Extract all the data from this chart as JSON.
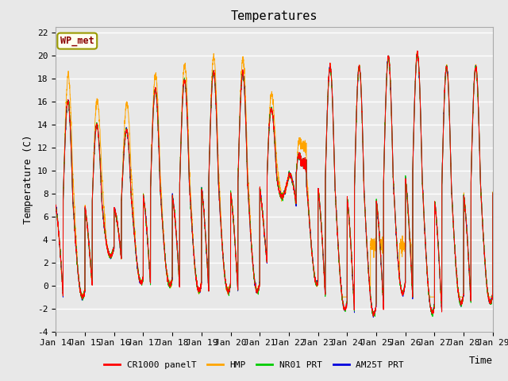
{
  "title": "Temperatures",
  "ylabel": "Temperature (C)",
  "xlabel": "Time",
  "ylim": [
    -4,
    22
  ],
  "yticks": [
    -4,
    -2,
    0,
    2,
    4,
    6,
    8,
    10,
    12,
    14,
    16,
    18,
    20,
    22
  ],
  "xtick_labels": [
    "Jan 14",
    "Jan 15",
    "Jan 16",
    "Jan 17",
    "Jan 18",
    "Jan 19",
    "Jan 20",
    "Jan 21",
    "Jan 22",
    "Jan 23",
    "Jan 24",
    "Jan 25",
    "Jan 26",
    "Jan 27",
    "Jan 28",
    "Jan 29"
  ],
  "legend_labels": [
    "CR1000 panelT",
    "HMP",
    "NR01 PRT",
    "AM25T PRT"
  ],
  "legend_colors": [
    "#ff0000",
    "#ffa500",
    "#00cc00",
    "#0000dd"
  ],
  "station_label": "WP_met",
  "bg_color": "#e8e8e8",
  "title_fontsize": 11,
  "label_fontsize": 9,
  "tick_fontsize": 8
}
